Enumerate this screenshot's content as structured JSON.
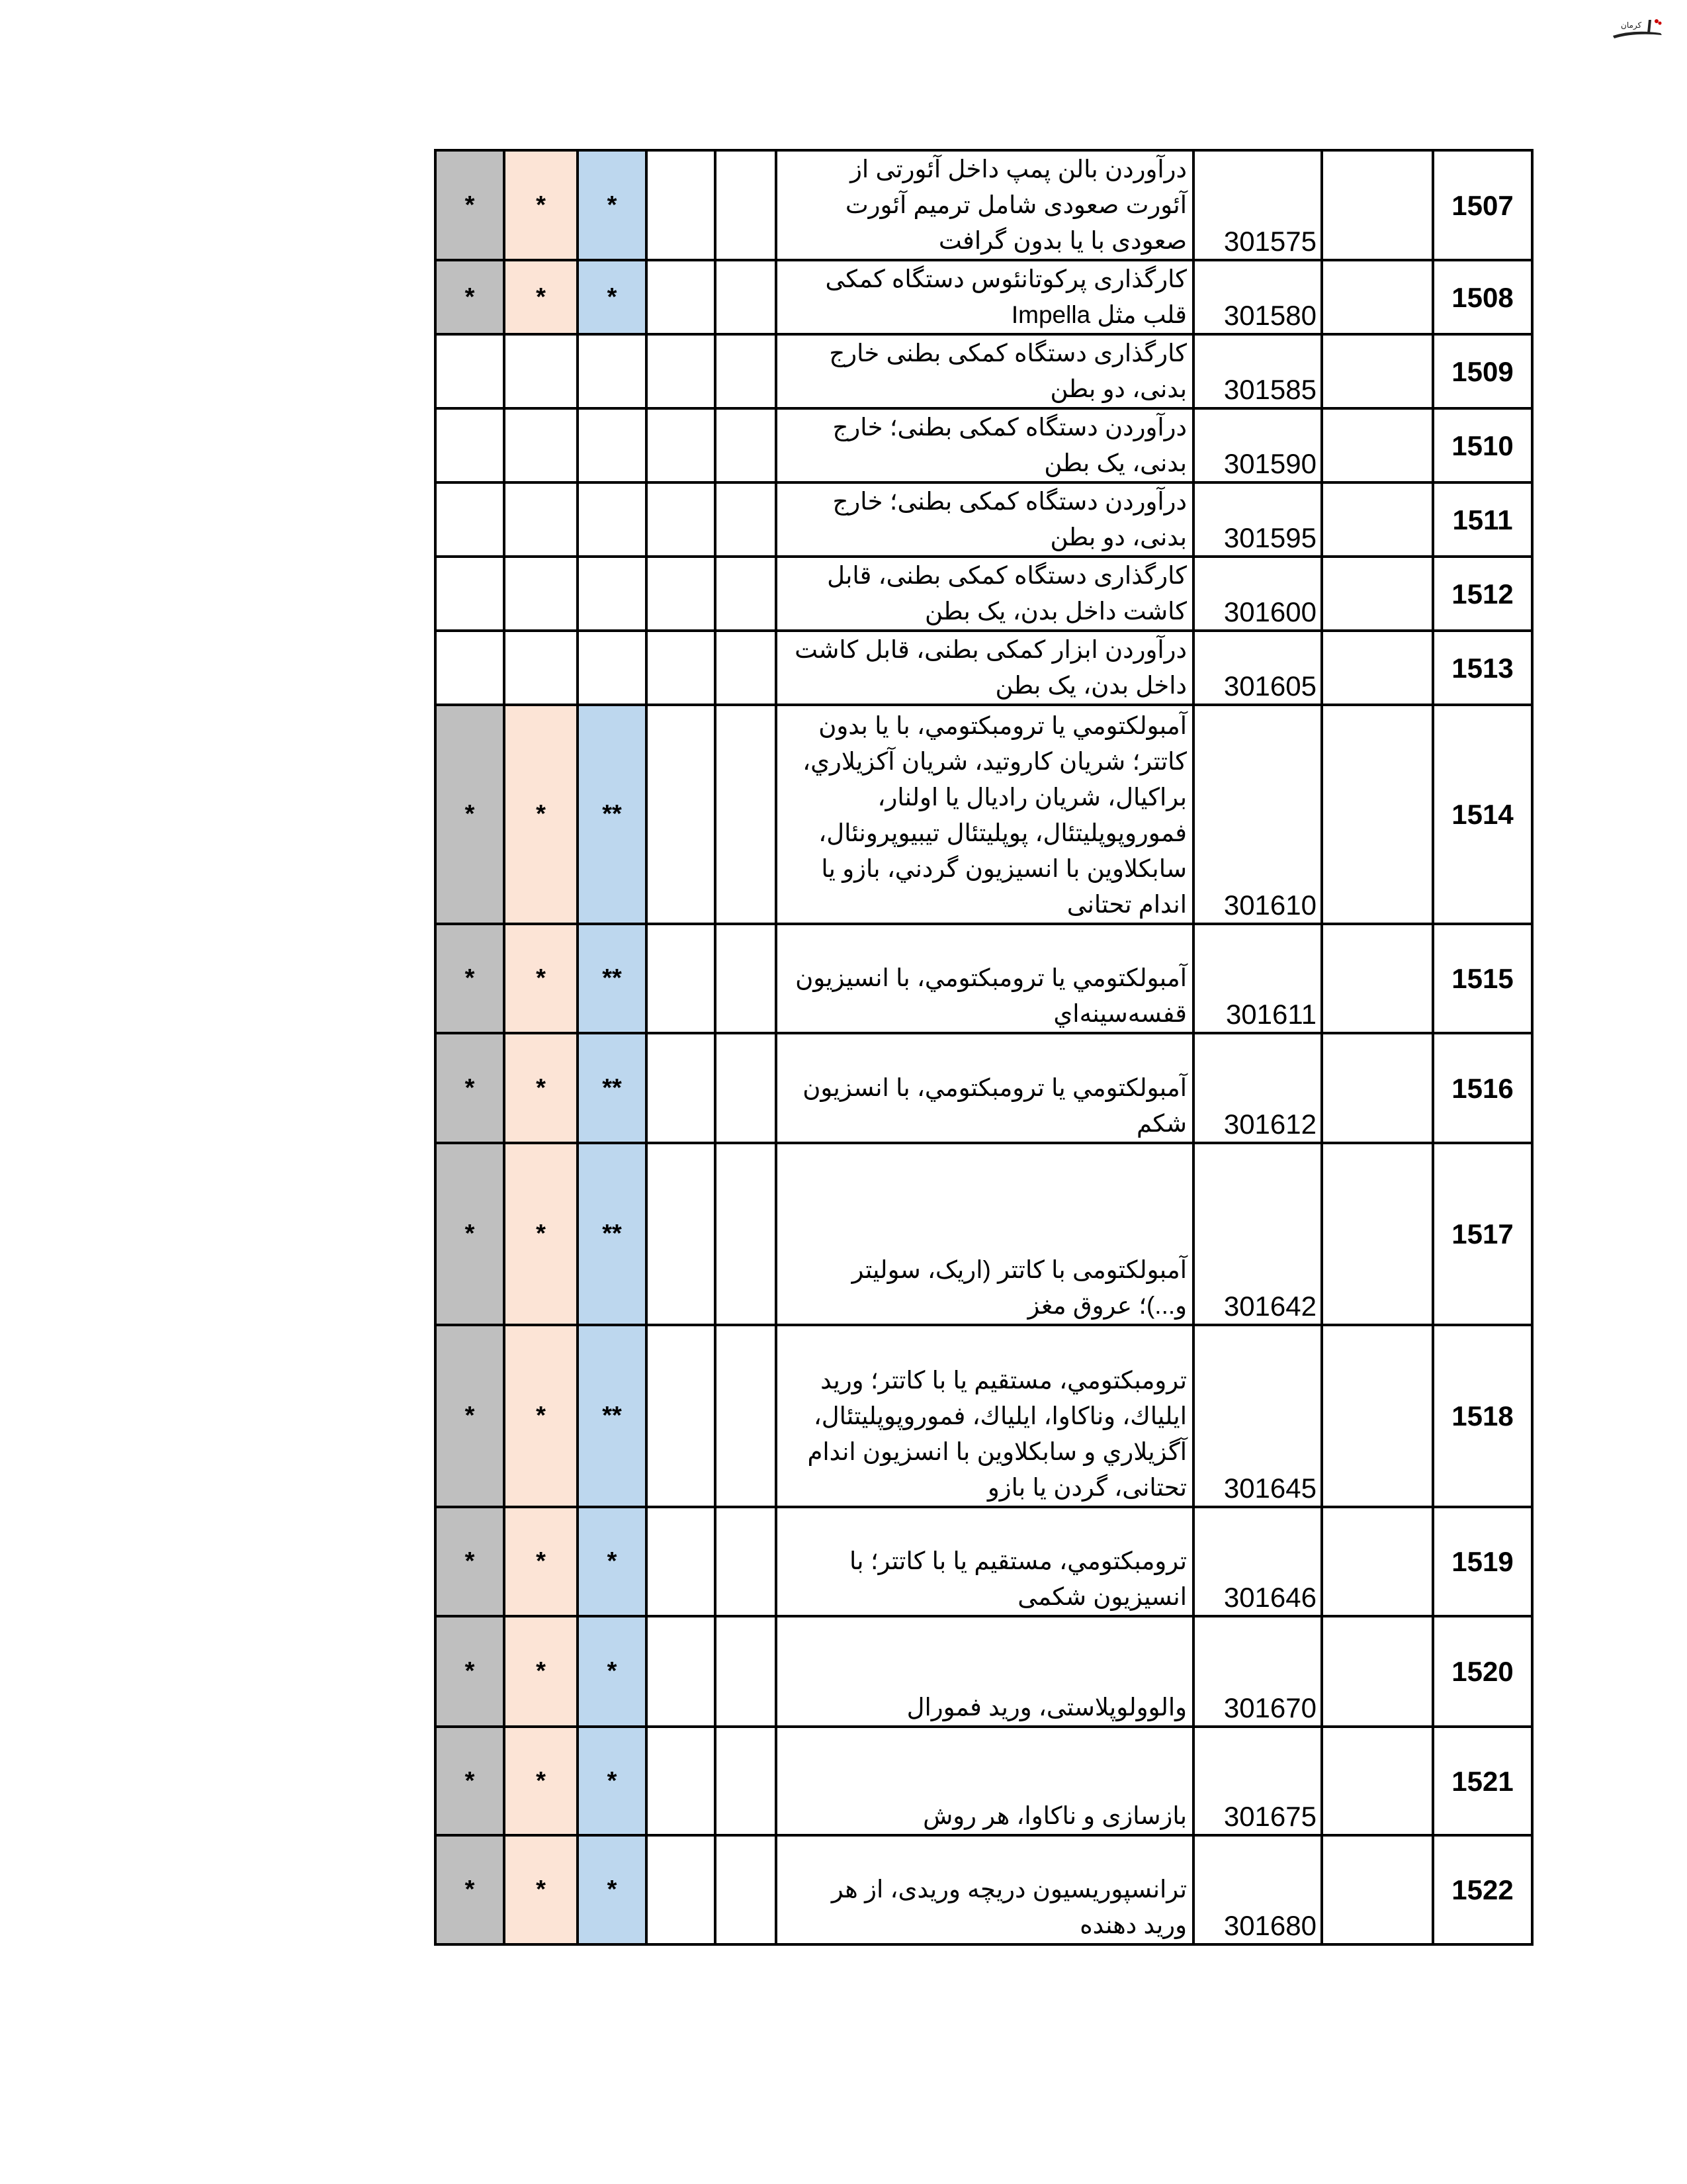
{
  "logo_text": "تابناک کرمان",
  "colors": {
    "gray": "#bfbfbf",
    "peach": "#fce4d6",
    "blue": "#bdd7ee"
  },
  "rows": [
    {
      "num": "1507",
      "code": "301575",
      "desc": "درآوردن بالن پمپ داخل آئورتی از\nآئورت صعودی شامل ترمیم آئورت\nصعودی با یا بدون گرافت",
      "gray": "*",
      "peach": "*",
      "blue": "*"
    },
    {
      "num": "1508",
      "code": "301580",
      "desc": "کارگذاری پرکوتانئوس دستگاه کمکی\nقلب مثل Impella",
      "gray": "*",
      "peach": "*",
      "blue": "*"
    },
    {
      "num": "1509",
      "code": "301585",
      "desc": "کارگذاری دستگاه کمکی بطنی خارج\nبدنی، دو بطن",
      "gray": "",
      "peach": "",
      "blue": ""
    },
    {
      "num": "1510",
      "code": "301590",
      "desc": "درآوردن دستگاه کمکی بطنی؛ خارج\nبدنی، یک بطن",
      "gray": "",
      "peach": "",
      "blue": ""
    },
    {
      "num": "1511",
      "code": "301595",
      "desc": "درآوردن دستگاه کمکی بطنی؛ خارج\nبدنی، دو بطن",
      "gray": "",
      "peach": "",
      "blue": ""
    },
    {
      "num": "1512",
      "code": "301600",
      "desc": "کارگذاری دستگاه کمکی بطنی، قابل\nکاشت داخل بدن، یک بطن",
      "gray": "",
      "peach": "",
      "blue": ""
    },
    {
      "num": "1513",
      "code": "301605",
      "desc": "درآوردن ابزار کمکی بطنی، قابل کاشت\nداخل بدن، یک بطن",
      "gray": "",
      "peach": "",
      "blue": ""
    },
    {
      "num": "1514",
      "code": "301610",
      "desc": "آمبولکتومي يا ترومبکتومي، با يا بدون\nکاتتر؛ شريان کاروتيد، شريان آکزيلاري،\nبراکيال، شريان راديال يا اولنار،\nفموروپوپليتئال، پوپليتئال تيبيوپرونئال،\nسابکلاوين با انسيزيون گردني، بازو يا\nاندام تحتانی",
      "gray": "*",
      "peach": "*",
      "blue": "**"
    },
    {
      "num": "1515",
      "code": "301611",
      "desc": "آمبولکتومي يا ترومبکتومي، با انسيزيون\nقفسه‌سينه‌اي",
      "gray": "*",
      "peach": "*",
      "blue": "**"
    },
    {
      "num": "1516",
      "code": "301612",
      "desc": "آمبولکتومي يا ترومبکتومي، با انسزيون\nشکم",
      "gray": "*",
      "peach": "*",
      "blue": "**"
    },
    {
      "num": "1517",
      "code": "301642",
      "desc": "آمبولکتومی با کاتتر (اریک، سولیتر\nو...)؛ عروق مغز",
      "gray": "*",
      "peach": "*",
      "blue": "**"
    },
    {
      "num": "1518",
      "code": "301645",
      "desc": "ترومبکتومي، مستقيم يا با کاتتر؛ وريد\nايلياك، وناكاوا، ايلياك، فموروپوپليتئال،\nآگزيلاري و سابکلاوين با انسزيون اندام\nتحتانی، گردن يا بازو",
      "gray": "*",
      "peach": "*",
      "blue": "**"
    },
    {
      "num": "1519",
      "code": "301646",
      "desc": "ترومبکتومي، مستقيم يا با کاتتر؛ با\nانسيزيون شکمی",
      "gray": "*",
      "peach": "*",
      "blue": "*"
    },
    {
      "num": "1520",
      "code": "301670",
      "desc": "والوولوپلاستی، ورید فمورال",
      "gray": "*",
      "peach": "*",
      "blue": "*"
    },
    {
      "num": "1521",
      "code": "301675",
      "desc": "بازسازی و ناکاوا، هر روش",
      "gray": "*",
      "peach": "*",
      "blue": "*"
    },
    {
      "num": "1522",
      "code": "301680",
      "desc": "ترانسپوریسیون دریچه وریدی، از هر\nورید دهنده",
      "gray": "*",
      "peach": "*",
      "blue": "*"
    }
  ]
}
